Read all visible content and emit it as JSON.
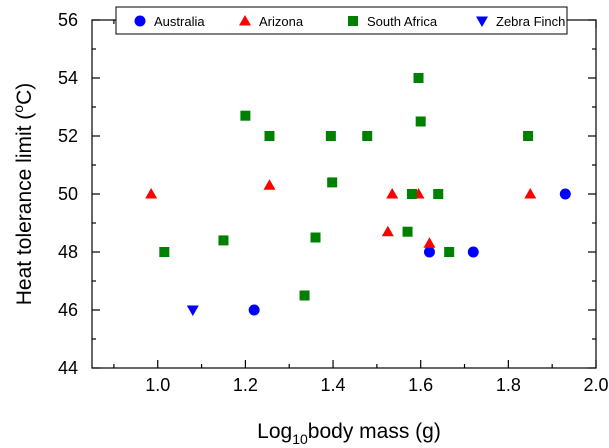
{
  "chart_data": {
    "type": "scatter",
    "title": "",
    "xlabel": {
      "prefix": "Log",
      "subscript": "10",
      "suffix": "body mass (g)"
    },
    "ylabel": {
      "prefix": "Heat tolerance limit (",
      "superscript": "o",
      "suffix": "C)"
    },
    "xlim": [
      0.85,
      2.0
    ],
    "ylim": [
      44,
      56
    ],
    "x_ticks": [
      1.0,
      1.2,
      1.4,
      1.6,
      1.8,
      2.0
    ],
    "x_tick_labels": [
      "1.0",
      "1.2",
      "1.4",
      "1.6",
      "1.8",
      "2.0"
    ],
    "y_ticks": [
      44,
      46,
      48,
      50,
      52,
      54,
      56
    ],
    "y_tick_labels": [
      "44",
      "46",
      "48",
      "50",
      "52",
      "54",
      "56"
    ],
    "grid": false,
    "legend_position": "top",
    "series": [
      {
        "name": "Australia",
        "marker": "circle",
        "color": "#0000ff",
        "points": [
          [
            1.22,
            46.0
          ],
          [
            1.62,
            48.0
          ],
          [
            1.72,
            48.0
          ],
          [
            1.93,
            50.0
          ]
        ]
      },
      {
        "name": "Arizona",
        "marker": "triangle-up",
        "color": "#ff0000",
        "points": [
          [
            0.985,
            50.0
          ],
          [
            1.255,
            50.3
          ],
          [
            1.525,
            48.7
          ],
          [
            1.535,
            50.0
          ],
          [
            1.595,
            50.0
          ],
          [
            1.62,
            48.3
          ],
          [
            1.85,
            50.0
          ]
        ]
      },
      {
        "name": "South Africa",
        "marker": "square",
        "color": "#008000",
        "points": [
          [
            1.015,
            48.0
          ],
          [
            1.15,
            48.4
          ],
          [
            1.2,
            52.7
          ],
          [
            1.255,
            52.0
          ],
          [
            1.335,
            46.5
          ],
          [
            1.36,
            48.5
          ],
          [
            1.395,
            52.0
          ],
          [
            1.398,
            50.4
          ],
          [
            1.478,
            52.0
          ],
          [
            1.57,
            48.7
          ],
          [
            1.58,
            50.0
          ],
          [
            1.595,
            54.0
          ],
          [
            1.6,
            52.5
          ],
          [
            1.64,
            50.0
          ],
          [
            1.665,
            48.0
          ],
          [
            1.845,
            52.0
          ]
        ]
      },
      {
        "name": "Zebra Finch",
        "marker": "triangle-down",
        "color": "#0000ff",
        "points": [
          [
            1.08,
            46.0
          ]
        ]
      }
    ]
  }
}
